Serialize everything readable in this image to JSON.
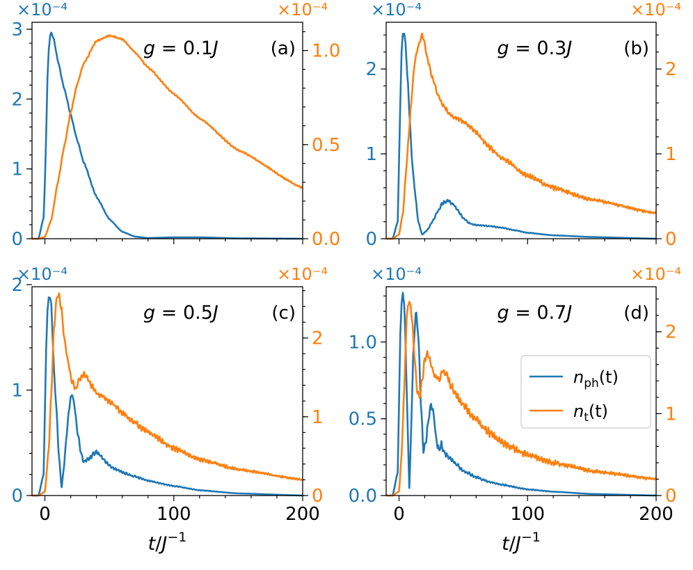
{
  "figure": {
    "xlabel": "t/J⁻¹",
    "colors": {
      "left": "#1f77b4",
      "right": "#ff7f0e"
    },
    "legend": {
      "position": "center-right of panel (d)",
      "entries": [
        {
          "label": "n_ph(t)",
          "main": "n",
          "sub": "ph",
          "tail": "(t)",
          "color": "#1f77b4"
        },
        {
          "label": "n_t(t)",
          "main": "n",
          "sub": "t",
          "tail": "(t)",
          "color": "#ff7f0e"
        }
      ]
    },
    "scale_left": "×10⁻⁴",
    "scale_right": "×10⁻⁴"
  },
  "chart_data": [
    {
      "type": "line",
      "panel_label": "(a)",
      "coupling_label": "g = 0.1J",
      "xlim": [
        -10,
        200
      ],
      "xticks": [
        0,
        100,
        200
      ],
      "left_axis": {
        "unit": "×10⁻⁴",
        "ylim": [
          0,
          3.1
        ],
        "ticks": [
          0,
          1,
          2,
          3
        ],
        "ticklabels": [
          "0",
          "1",
          "2",
          "3"
        ]
      },
      "right_axis": {
        "unit": "×10⁻⁴",
        "ylim": [
          0,
          1.15
        ],
        "ticks": [
          0,
          0.5,
          1.0
        ],
        "ticklabels": [
          "0.0",
          "0.5",
          "1.0"
        ]
      },
      "series": [
        {
          "name": "n_ph(t)",
          "axis": "left",
          "x": [
            -5,
            -1,
            0,
            1,
            2,
            3,
            4,
            5,
            7,
            10,
            15,
            20,
            25,
            30,
            40,
            50,
            60,
            70,
            80,
            100,
            120,
            150,
            200
          ],
          "y": [
            0,
            0.3,
            0.8,
            1.5,
            2.3,
            2.7,
            2.9,
            2.95,
            2.85,
            2.55,
            2.15,
            1.78,
            1.42,
            1.1,
            0.6,
            0.28,
            0.1,
            0.03,
            0.01,
            0.02,
            0.02,
            0.005,
            0
          ]
        },
        {
          "name": "n_t(t)",
          "axis": "right",
          "x": [
            -5,
            0,
            5,
            10,
            15,
            20,
            25,
            30,
            40,
            50,
            60,
            70,
            80,
            100,
            120,
            150,
            200
          ],
          "y": [
            0,
            0.01,
            0.1,
            0.3,
            0.49,
            0.67,
            0.82,
            0.93,
            1.05,
            1.08,
            1.06,
            0.99,
            0.91,
            0.77,
            0.64,
            0.47,
            0.27
          ]
        }
      ]
    },
    {
      "type": "line",
      "panel_label": "(b)",
      "coupling_label": "g = 0.3J",
      "xlim": [
        -10,
        200
      ],
      "xticks": [
        0,
        100,
        200
      ],
      "left_axis": {
        "unit": "×10⁻⁴",
        "ylim": [
          0,
          2.55
        ],
        "ticks": [
          0,
          1,
          2
        ],
        "ticklabels": [
          "0",
          "1",
          "2"
        ]
      },
      "right_axis": {
        "unit": "×10⁻⁴",
        "ylim": [
          0,
          2.55
        ],
        "ticks": [
          0,
          1,
          2
        ],
        "ticklabels": [
          "0",
          "1",
          "2"
        ]
      },
      "series": [
        {
          "name": "n_ph(t)",
          "axis": "left",
          "x": [
            -5,
            -1,
            0,
            1,
            2,
            3,
            4,
            5,
            6,
            7,
            8,
            10,
            12,
            15,
            18,
            22,
            26,
            30,
            34,
            38,
            42,
            46,
            50,
            55,
            60,
            70,
            80,
            90,
            100,
            120,
            150,
            200
          ],
          "y": [
            0,
            0.2,
            0.9,
            1.6,
            2.2,
            2.4,
            2.42,
            2.3,
            2.05,
            1.8,
            1.5,
            0.95,
            0.6,
            0.2,
            0.05,
            0.1,
            0.2,
            0.32,
            0.42,
            0.45,
            0.41,
            0.33,
            0.24,
            0.18,
            0.16,
            0.15,
            0.13,
            0.1,
            0.07,
            0.04,
            0.02,
            0
          ]
        },
        {
          "name": "n_t(t)",
          "axis": "right",
          "x": [
            -5,
            0,
            3,
            6,
            8,
            10,
            12,
            14,
            16,
            18,
            20,
            22,
            26,
            30,
            35,
            40,
            45,
            50,
            55,
            60,
            70,
            80,
            100,
            120,
            150,
            200
          ],
          "y": [
            0,
            0.05,
            0.3,
            0.9,
            1.3,
            1.7,
            2.05,
            2.22,
            2.32,
            2.4,
            2.3,
            2.12,
            1.9,
            1.7,
            1.55,
            1.45,
            1.42,
            1.38,
            1.33,
            1.25,
            1.08,
            0.95,
            0.74,
            0.6,
            0.46,
            0.3
          ]
        }
      ]
    },
    {
      "type": "line",
      "panel_label": "(c)",
      "coupling_label": "g = 0.5J",
      "xlim": [
        -10,
        200
      ],
      "xticks": [
        0,
        100,
        200
      ],
      "left_axis": {
        "unit": "×10⁻⁴",
        "ylim": [
          0,
          1.98
        ],
        "ticks": [
          0,
          1,
          2
        ],
        "ticklabels": [
          "0",
          "1",
          "2"
        ]
      },
      "right_axis": {
        "unit": "×10⁻⁴",
        "ylim": [
          0,
          2.65
        ],
        "ticks": [
          0,
          1,
          2
        ],
        "ticklabels": [
          "0",
          "1",
          "2"
        ]
      },
      "series": [
        {
          "name": "n_ph(t)",
          "axis": "left",
          "x": [
            -5,
            -1,
            0,
            1,
            2,
            3,
            4,
            5,
            6,
            7,
            9,
            11,
            13,
            15,
            17,
            19,
            21,
            23,
            25,
            28,
            30,
            35,
            40,
            45,
            50,
            60,
            70,
            80,
            100,
            120,
            150,
            200
          ],
          "y": [
            0,
            0.2,
            0.8,
            1.4,
            1.75,
            1.88,
            1.9,
            1.8,
            1.5,
            1.2,
            0.8,
            0.35,
            0.08,
            0.3,
            0.6,
            0.85,
            0.97,
            0.85,
            0.62,
            0.4,
            0.32,
            0.36,
            0.42,
            0.35,
            0.28,
            0.22,
            0.18,
            0.14,
            0.09,
            0.05,
            0.02,
            0
          ]
        },
        {
          "name": "n_t(t)",
          "axis": "right",
          "x": [
            -5,
            0,
            3,
            5,
            7,
            9,
            11,
            13,
            15,
            18,
            21,
            24,
            27,
            30,
            33,
            36,
            40,
            45,
            50,
            60,
            70,
            80,
            100,
            120,
            150,
            200
          ],
          "y": [
            0,
            0.05,
            0.6,
            1.3,
            2.1,
            2.5,
            2.56,
            2.35,
            2.0,
            1.7,
            1.45,
            1.35,
            1.48,
            1.55,
            1.5,
            1.4,
            1.3,
            1.25,
            1.2,
            1.05,
            0.92,
            0.8,
            0.6,
            0.46,
            0.33,
            0.2
          ]
        }
      ]
    },
    {
      "type": "line",
      "panel_label": "(d)",
      "coupling_label": "g = 0.7J",
      "xlim": [
        -10,
        200
      ],
      "xticks": [
        0,
        100,
        200
      ],
      "left_axis": {
        "unit": "×10⁻⁴",
        "ylim": [
          0,
          1.36
        ],
        "ticks": [
          0,
          0.5,
          1.0
        ],
        "ticklabels": [
          "0.0",
          "0.5",
          "1.0"
        ]
      },
      "right_axis": {
        "unit": "×10⁻⁴",
        "ylim": [
          0,
          2.55
        ],
        "ticks": [
          0,
          1,
          2
        ],
        "ticklabels": [
          "0",
          "1",
          "2"
        ]
      },
      "series": [
        {
          "name": "n_ph(t)",
          "axis": "left",
          "x": [
            -5,
            -1,
            0,
            1,
            2,
            3,
            4,
            5,
            6,
            7,
            8,
            9,
            11,
            13,
            15,
            17,
            19,
            21,
            23,
            25,
            27,
            29,
            31,
            33,
            35,
            40,
            45,
            50,
            60,
            70,
            80,
            100,
            120,
            150,
            200
          ],
          "y": [
            0,
            0.15,
            0.6,
            1.05,
            1.25,
            1.31,
            1.25,
            1.0,
            0.7,
            0.35,
            0.05,
            0.3,
            0.9,
            1.2,
            1.05,
            0.6,
            0.3,
            0.35,
            0.5,
            0.6,
            0.52,
            0.36,
            0.3,
            0.34,
            0.28,
            0.24,
            0.2,
            0.16,
            0.12,
            0.09,
            0.07,
            0.04,
            0.025,
            0.01,
            0
          ]
        },
        {
          "name": "n_t(t)",
          "axis": "right",
          "x": [
            -5,
            0,
            2,
            4,
            6,
            8,
            10,
            12,
            14,
            16,
            18,
            20,
            22,
            25,
            28,
            31,
            34,
            37,
            40,
            45,
            50,
            60,
            70,
            80,
            100,
            120,
            150,
            200
          ],
          "y": [
            0,
            0.05,
            0.5,
            1.3,
            2.2,
            2.38,
            2.2,
            1.7,
            1.3,
            1.2,
            1.4,
            1.65,
            1.75,
            1.58,
            1.45,
            1.42,
            1.52,
            1.48,
            1.35,
            1.22,
            1.1,
            0.92,
            0.77,
            0.65,
            0.5,
            0.4,
            0.3,
            0.2
          ]
        }
      ]
    }
  ]
}
